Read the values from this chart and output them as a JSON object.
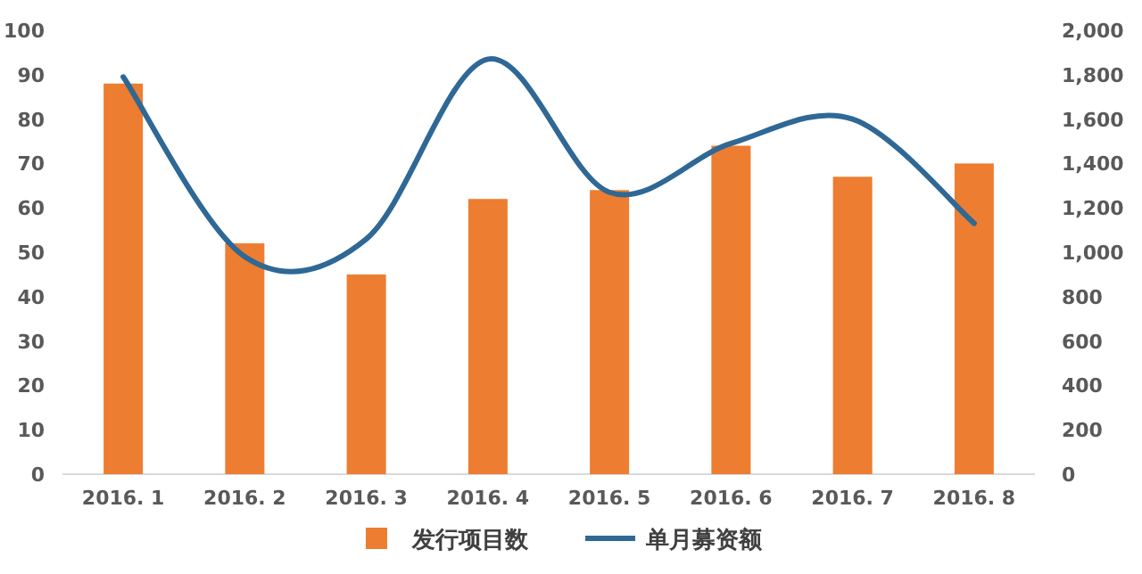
{
  "chart_data": {
    "type": "bar",
    "categories": [
      "2016. 1",
      "2016. 2",
      "2016. 3",
      "2016. 4",
      "2016. 5",
      "2016. 6",
      "2016. 7",
      "2016. 8"
    ],
    "series": [
      {
        "name": "发行项目数",
        "color": "#ed7d31",
        "values": [
          88,
          52,
          45,
          62,
          64,
          74,
          67,
          70
        ]
      },
      {
        "name": "单月募资额",
        "type": "line",
        "axis": "y2",
        "color": "#2f6895",
        "values": [
          1790,
          980,
          1060,
          1870,
          1270,
          1490,
          1600,
          1130
        ]
      }
    ],
    "ylim": [
      0,
      100
    ],
    "yticks": [
      0,
      10,
      20,
      30,
      40,
      50,
      60,
      70,
      80,
      90,
      100
    ],
    "y2lim": [
      0,
      2000
    ],
    "y2ticks": [
      0,
      200,
      400,
      600,
      800,
      {
        "value": 1000,
        "label": "1,000"
      },
      {
        "value": 1200,
        "label": "1,200"
      },
      {
        "value": 1400,
        "label": "1,400"
      },
      {
        "value": 1600,
        "label": "1,600"
      },
      {
        "value": 1800,
        "label": "1,800"
      },
      {
        "value": 2000,
        "label": "2,000"
      }
    ],
    "grid": false,
    "legend": "bottom",
    "marker": "none",
    "line_style": "solid"
  }
}
